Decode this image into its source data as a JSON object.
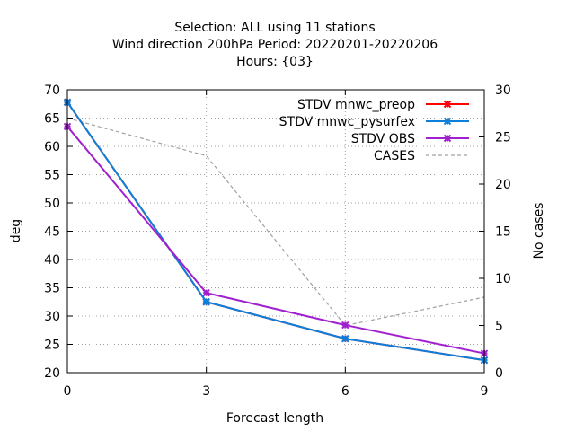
{
  "chart_data": {
    "type": "line",
    "title_lines": [
      "Selection: ALL using    11 stations",
      "Wind direction 200hPa   Period: 20220201-20220206",
      "Hours: {03}"
    ],
    "xlabel": "Forecast length",
    "ylabel": "deg",
    "y2label": "No cases",
    "x": [
      0,
      3,
      6,
      9
    ],
    "xlim": [
      0,
      9
    ],
    "ylim": [
      20,
      70
    ],
    "y2lim": [
      0,
      30
    ],
    "x_ticks": [
      "0",
      "3",
      "6",
      "9"
    ],
    "y_ticks": [
      "20",
      "25",
      "30",
      "35",
      "40",
      "45",
      "50",
      "55",
      "60",
      "65",
      "70"
    ],
    "y2_ticks": [
      "0",
      "5",
      "10",
      "15",
      "20",
      "25",
      "30"
    ],
    "grid": true,
    "legend_position": "top-right",
    "series": [
      {
        "name": "STDV mnwc_preop",
        "axis": "y1",
        "color": "#ff0000",
        "dash": "solid",
        "marker": "star",
        "values": [
          67.8,
          32.5,
          26.0,
          22.2
        ]
      },
      {
        "name": "STDV mnwc_pysurfex",
        "axis": "y1",
        "color": "#0a7fdc",
        "dash": "solid",
        "marker": "star",
        "values": [
          67.8,
          32.5,
          26.0,
          22.2
        ]
      },
      {
        "name": "STDV OBS",
        "axis": "y1",
        "color": "#a020d0",
        "dash": "solid",
        "marker": "star",
        "values": [
          63.5,
          34.1,
          28.4,
          23.4
        ]
      },
      {
        "name": "CASES",
        "axis": "y2",
        "color": "#a0a0a0",
        "dash": "dashed",
        "marker": "none",
        "values": [
          27,
          23,
          5,
          8
        ]
      }
    ]
  }
}
